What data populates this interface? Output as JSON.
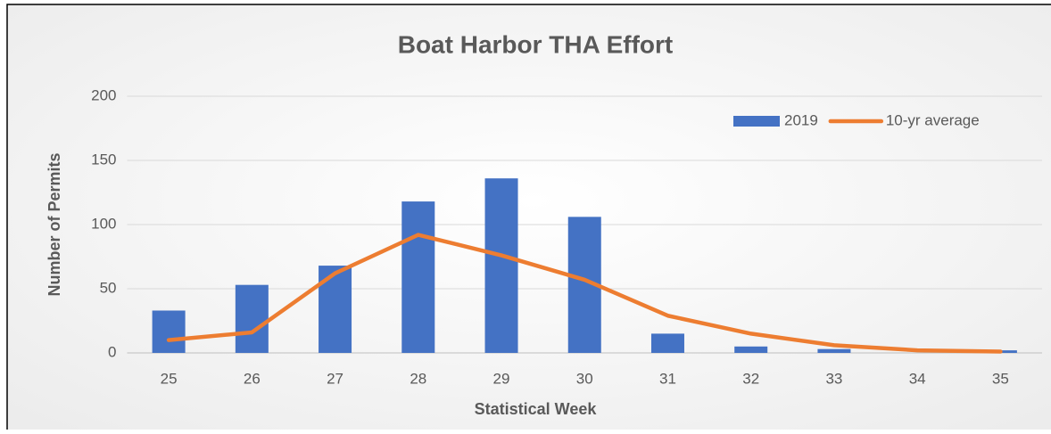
{
  "chart_data": {
    "type": "bar",
    "title": "Boat Harbor THA Effort",
    "xlabel": "Statistical Week",
    "ylabel": "Number of Permits",
    "categories": [
      "25",
      "26",
      "27",
      "28",
      "29",
      "30",
      "31",
      "32",
      "33",
      "34",
      "35"
    ],
    "series": [
      {
        "name": "2019",
        "type": "bar",
        "color": "#4472c4",
        "values": [
          33,
          53,
          68,
          118,
          136,
          106,
          15,
          5,
          3,
          0,
          2
        ]
      },
      {
        "name": "10-yr average",
        "type": "line",
        "color": "#ed7d31",
        "values": [
          10,
          16,
          62,
          92,
          76,
          57,
          29,
          15,
          6,
          2,
          1
        ]
      }
    ],
    "ylim": [
      0,
      200
    ],
    "yticks": [
      0,
      50,
      100,
      150,
      200
    ],
    "grid": true,
    "legend": "top-right"
  }
}
